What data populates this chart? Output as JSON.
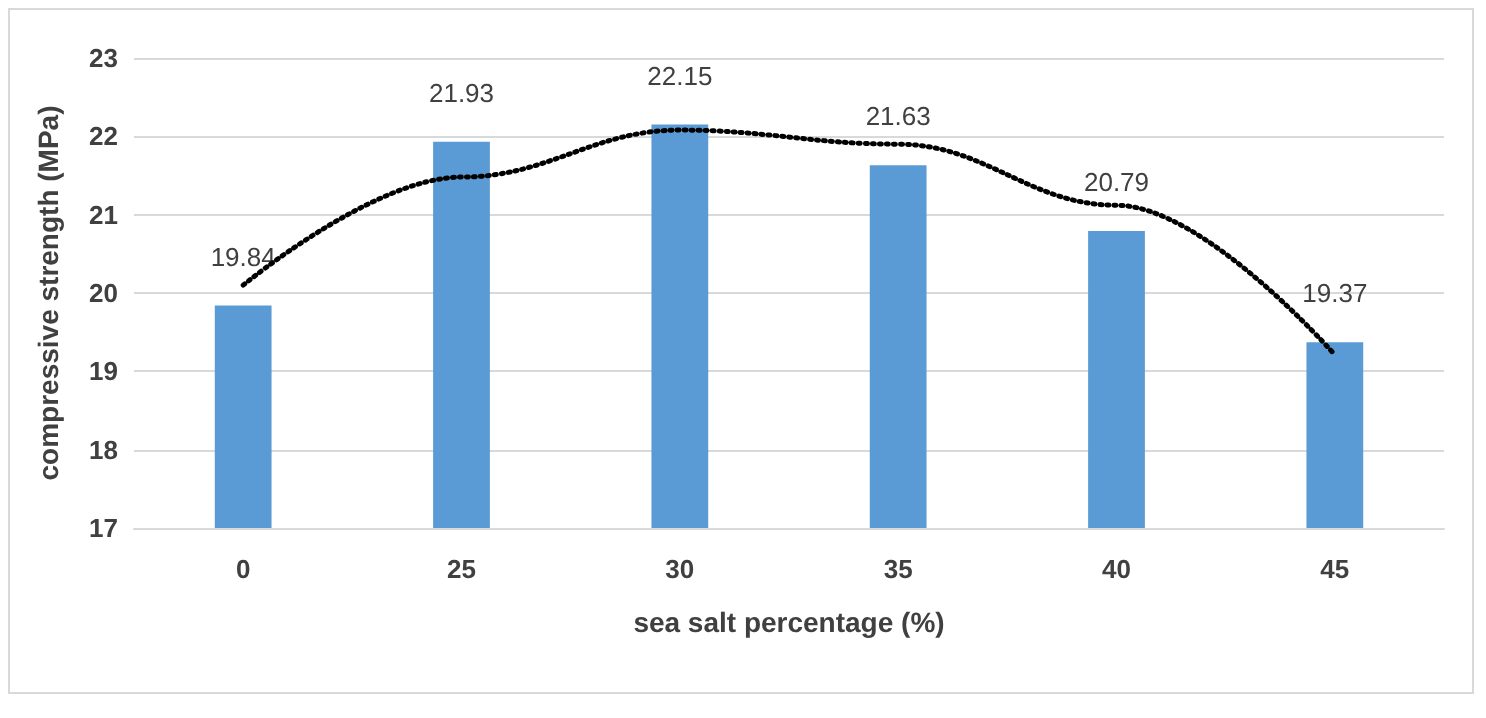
{
  "chart_data": {
    "type": "bar",
    "xlabel": "sea salt percentage (%)",
    "ylabel": "compressive strength (MPa)",
    "categories": [
      "0",
      "25",
      "30",
      "35",
      "40",
      "45"
    ],
    "series": [
      {
        "color": "#5b9bd5",
        "values": [
          19.84,
          21.93,
          22.15,
          21.63,
          20.79,
          19.37
        ],
        "value_labels": [
          "19.84",
          "21.93",
          "22.15",
          "21.63",
          "20.79",
          "19.37"
        ]
      },
      {
        "type": "line",
        "color": "#000000",
        "x": [
          "0",
          "25",
          "30",
          "35",
          "40",
          "45"
        ],
        "values": [
          20.1,
          21.48,
          22.08,
          21.9,
          21.12,
          19.21
        ],
        "line_style": "dotted",
        "marker": "none"
      }
    ],
    "ylim": [
      17,
      23
    ],
    "yticks": [
      17,
      18,
      19,
      20,
      21,
      22,
      23
    ],
    "grid": "y"
  }
}
